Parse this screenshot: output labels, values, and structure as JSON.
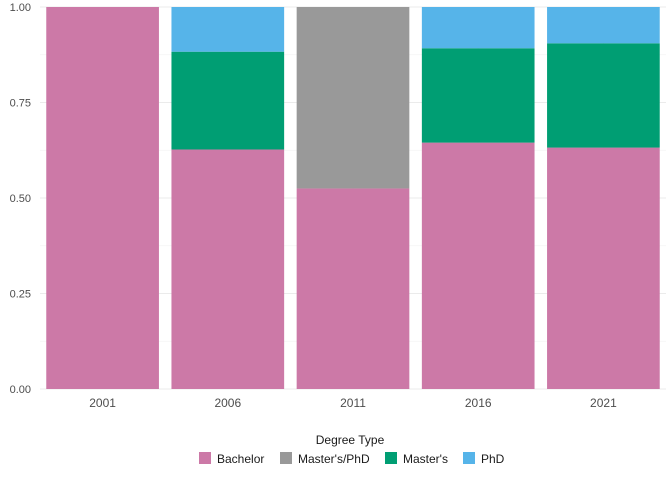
{
  "chart_data": {
    "type": "bar",
    "stacked": true,
    "categories": [
      "2001",
      "2006",
      "2011",
      "2016",
      "2021"
    ],
    "series": [
      {
        "name": "Bachelor",
        "color": "#cc79a7",
        "values": [
          1.0,
          0.627,
          0.525,
          0.645,
          0.632
        ]
      },
      {
        "name": "Master's/PhD",
        "color": "#999999",
        "values": [
          0.0,
          0.0,
          0.475,
          0.0,
          0.0
        ]
      },
      {
        "name": "Master's",
        "color": "#009e73",
        "values": [
          0.0,
          0.256,
          0.0,
          0.247,
          0.273
        ]
      },
      {
        "name": "PhD",
        "color": "#56b4e9",
        "values": [
          0.0,
          0.117,
          0.0,
          0.108,
          0.095
        ]
      }
    ],
    "ylim": [
      0,
      1
    ],
    "yticks": [
      "0.00",
      "0.25",
      "0.50",
      "0.75",
      "1.00"
    ],
    "grid": true,
    "legend": {
      "title": "Degree Type",
      "position": "bottom"
    }
  }
}
